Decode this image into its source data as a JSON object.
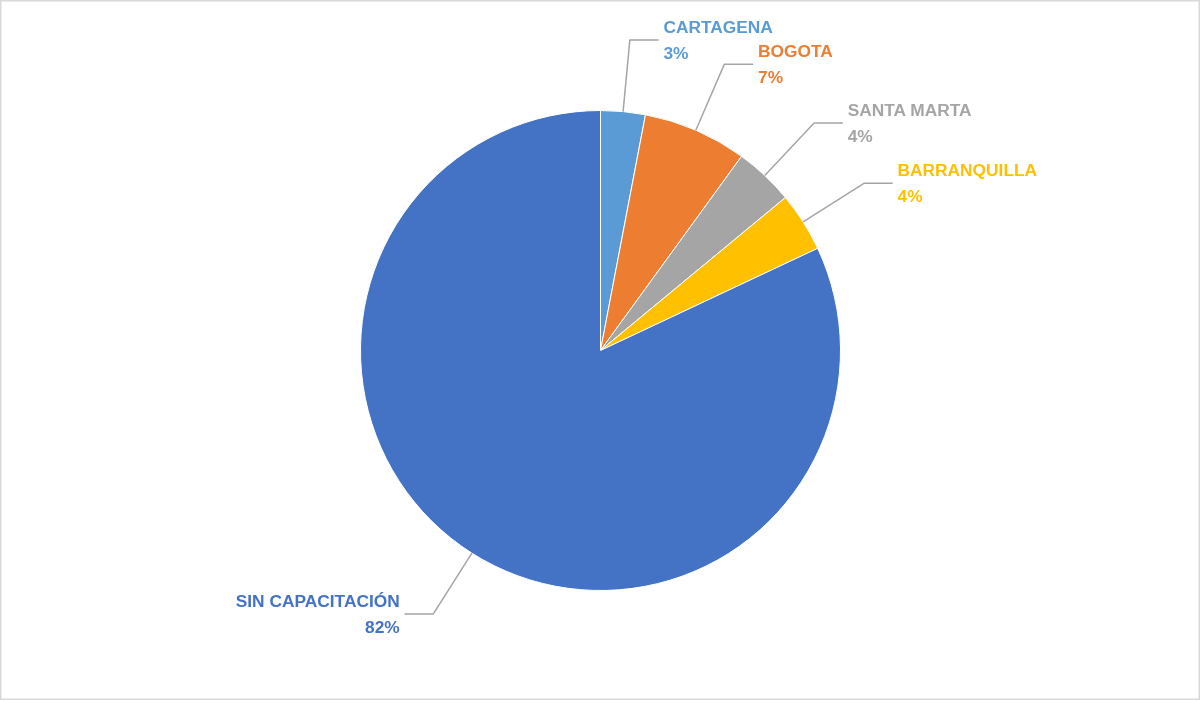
{
  "chart_data": {
    "type": "pie",
    "categories": [
      "CARTAGENA",
      "BOGOTA",
      "SANTA MARTA",
      "BARRANQUILLA",
      "SIN CAPACITACIÓN"
    ],
    "values": [
      3,
      7,
      4,
      4,
      82
    ],
    "colors": [
      "#5b9bd5",
      "#ed7d31",
      "#a5a5a5",
      "#ffc000",
      "#4472c4"
    ],
    "value_labels": [
      "3%",
      "7%",
      "4%",
      "4%",
      "82%"
    ]
  }
}
